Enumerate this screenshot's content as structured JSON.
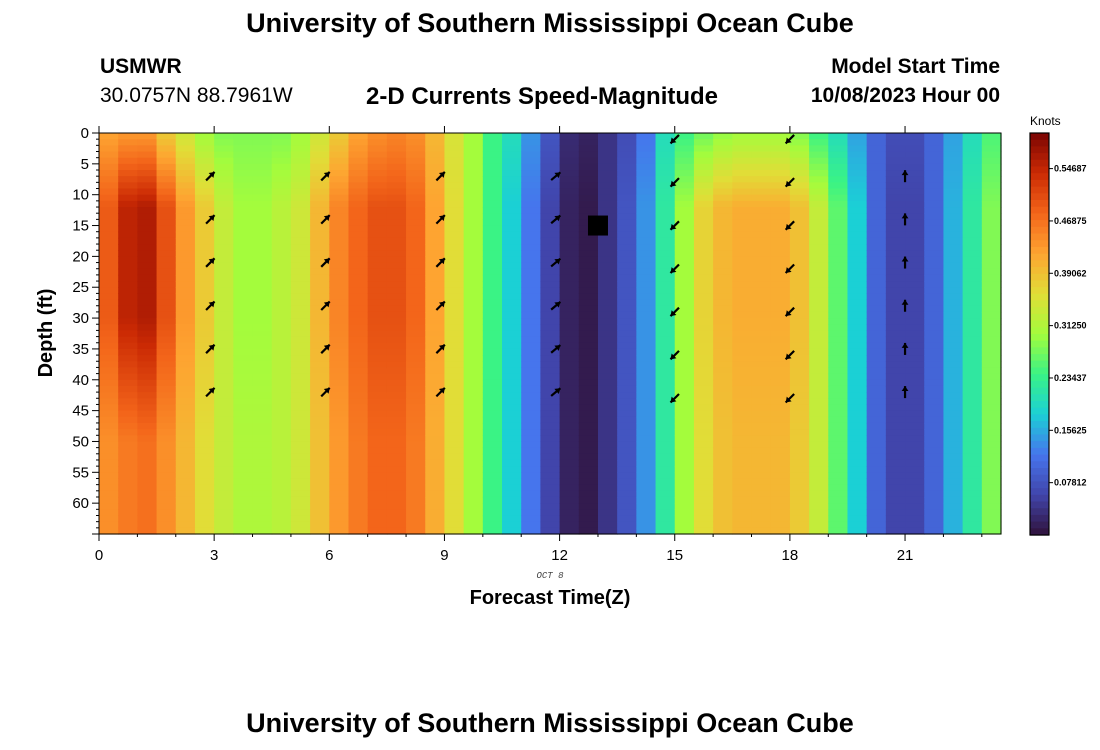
{
  "header": {
    "title": "University of Southern Mississippi Ocean Cube",
    "station": "USMWR",
    "coords": "30.0757N  88.7961W",
    "subtitle": "2-D Currents Speed-Magnitude",
    "model_start_label": "Model Start Time",
    "model_start_value": "10/08/2023 Hour 00"
  },
  "footer": {
    "title": "University of Southern Mississippi Ocean Cube"
  },
  "chart_data": {
    "type": "heatmap",
    "title": "2-D Currents Speed-Magnitude",
    "xlabel": "Forecast Time(Z)",
    "ylabel": "Depth (ft)",
    "date_label": "OCT 8",
    "xlim": [
      0,
      23.5
    ],
    "ylim": [
      0,
      65
    ],
    "x_ticks": [
      "0",
      "3",
      "6",
      "9",
      "12",
      "15",
      "18",
      "21"
    ],
    "y_ticks": [
      "0",
      "5",
      "10",
      "15",
      "20",
      "25",
      "30",
      "35",
      "40",
      "45",
      "50",
      "55",
      "60"
    ],
    "colorbar": {
      "title": "Knots",
      "min": 0.0,
      "max": 0.6,
      "tick_labels": [
        "0.54687",
        "0.46875",
        "0.39062",
        "0.31250",
        "0.23437",
        "0.15625",
        "0.07812"
      ],
      "tick_values": [
        0.54687,
        0.46875,
        0.39062,
        0.3125,
        0.23437,
        0.15625,
        0.07812
      ]
    },
    "hours": [
      0.5,
      1,
      1.5,
      2,
      2.5,
      3,
      3.5,
      4,
      4.5,
      5,
      5.5,
      6,
      6.5,
      7,
      7.5,
      8,
      8.5,
      9,
      9.5,
      10,
      10.5,
      11,
      11.5,
      12,
      12.5,
      13,
      13.5,
      14,
      14.5,
      15,
      15.5,
      16,
      16.5,
      17,
      17.5,
      18,
      18.5,
      19,
      19.5,
      20,
      20.5,
      21,
      21.5,
      22,
      22.5,
      23,
      23.5
    ],
    "surface_speed": [
      0.42,
      0.43,
      0.43,
      0.38,
      0.34,
      0.3,
      0.28,
      0.28,
      0.28,
      0.28,
      0.3,
      0.34,
      0.38,
      0.42,
      0.44,
      0.45,
      0.44,
      0.4,
      0.35,
      0.3,
      0.24,
      0.2,
      0.14,
      0.08,
      0.03,
      0.02,
      0.04,
      0.07,
      0.12,
      0.2,
      0.24,
      0.27,
      0.29,
      0.3,
      0.3,
      0.3,
      0.28,
      0.24,
      0.2,
      0.15,
      0.1,
      0.07,
      0.07,
      0.1,
      0.15,
      0.2,
      0.25
    ],
    "subsurface_speed": [
      0.49,
      0.55,
      0.56,
      0.5,
      0.43,
      0.38,
      0.33,
      0.3,
      0.3,
      0.32,
      0.34,
      0.4,
      0.45,
      0.48,
      0.5,
      0.5,
      0.48,
      0.42,
      0.36,
      0.3,
      0.24,
      0.18,
      0.12,
      0.06,
      0.02,
      0.01,
      0.04,
      0.08,
      0.14,
      0.22,
      0.3,
      0.37,
      0.4,
      0.41,
      0.41,
      0.41,
      0.39,
      0.33,
      0.26,
      0.18,
      0.1,
      0.06,
      0.06,
      0.1,
      0.16,
      0.22,
      0.28
    ],
    "deep_speed": [
      0.44,
      0.46,
      0.47,
      0.44,
      0.4,
      0.36,
      0.33,
      0.31,
      0.31,
      0.32,
      0.34,
      0.39,
      0.43,
      0.46,
      0.48,
      0.48,
      0.46,
      0.41,
      0.36,
      0.3,
      0.24,
      0.18,
      0.12,
      0.06,
      0.02,
      0.01,
      0.04,
      0.08,
      0.14,
      0.22,
      0.3,
      0.36,
      0.39,
      0.4,
      0.4,
      0.4,
      0.38,
      0.33,
      0.26,
      0.18,
      0.1,
      0.06,
      0.06,
      0.1,
      0.16,
      0.22,
      0.28
    ],
    "markers": [
      {
        "hour": 13,
        "depth": 15
      }
    ],
    "vectors": [
      {
        "hour": 2.9,
        "depths": [
          7,
          14,
          21,
          28,
          35,
          42
        ],
        "dir_deg": 315
      },
      {
        "hour": 5.9,
        "depths": [
          7,
          14,
          21,
          28,
          35,
          42
        ],
        "dir_deg": 315
      },
      {
        "hour": 8.9,
        "depths": [
          7,
          14,
          21,
          28,
          35,
          42
        ],
        "dir_deg": 315
      },
      {
        "hour": 11.9,
        "depths": [
          7,
          14,
          21,
          28,
          35,
          42
        ],
        "dir_deg": 320
      },
      {
        "hour": 15.0,
        "depths": [
          1,
          8,
          15,
          22,
          29,
          36,
          43
        ],
        "dir_deg": 135
      },
      {
        "hour": 18.0,
        "depths": [
          1,
          8,
          15,
          22,
          29,
          36,
          43
        ],
        "dir_deg": 135
      },
      {
        "hour": 21.0,
        "depths": [
          7,
          14,
          21,
          28,
          35,
          42
        ],
        "dir_deg": 270
      }
    ]
  }
}
